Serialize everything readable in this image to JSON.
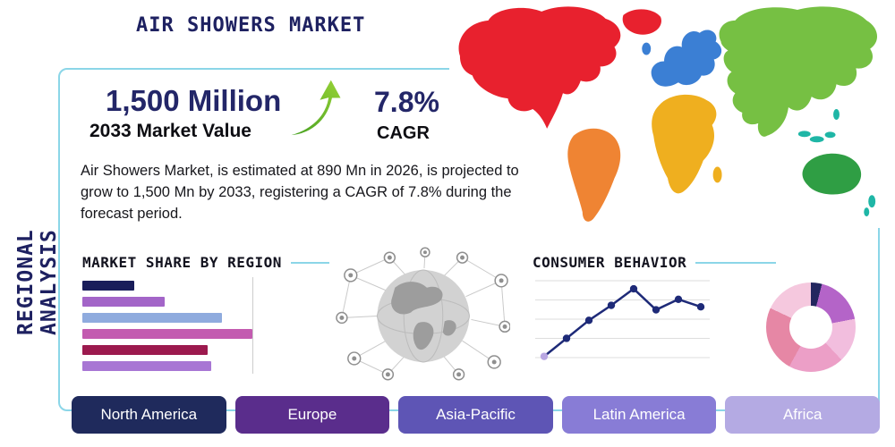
{
  "header": {
    "title": "AIR SHOWERS MARKET",
    "side_label": "REGIONAL ANALYSIS"
  },
  "highlights": {
    "market_value": "1,500 Million",
    "market_value_caption": "2033 Market Value",
    "cagr_value": "7.8%",
    "cagr_caption": "CAGR"
  },
  "description": "Air Showers Market, is estimated at 890 Mn in 2026, is projected to grow to 1,500 Mn by 2033, registering a CAGR of 7.8% during the forecast period.",
  "sections": {
    "market_share_title": "MARKET SHARE BY REGION",
    "consumer_behavior_title": "CONSUMER BEHAVIOR"
  },
  "icons": {
    "growth_arrow": "growth-arrow-icon",
    "globe_network": "globe-network-graphic",
    "world_map": "world-map-graphic"
  },
  "colors": {
    "navy": "#1e2161",
    "teal_border": "#8bd6e8"
  },
  "map_regions": [
    {
      "name": "north-america",
      "color": "#e8212e"
    },
    {
      "name": "greenland",
      "color": "#e8212e"
    },
    {
      "name": "south-america",
      "color": "#ef8433"
    },
    {
      "name": "europe",
      "color": "#3b7fd4"
    },
    {
      "name": "africa",
      "color": "#efaf1f"
    },
    {
      "name": "madagascar",
      "color": "#efaf1f"
    },
    {
      "name": "asia",
      "color": "#76c043"
    },
    {
      "name": "australia",
      "color": "#2f9e44"
    },
    {
      "name": "islands",
      "color": "#1fb6a6"
    }
  ],
  "region_buttons": [
    {
      "label": "North America",
      "color": "#1f2a5c"
    },
    {
      "label": "Europe",
      "color": "#5a2d8c"
    },
    {
      "label": "Asia-Pacific",
      "color": "#5e55b5"
    },
    {
      "label": "Latin America",
      "color": "#887cd6"
    },
    {
      "label": "Africa",
      "color": "#b4aae3"
    }
  ],
  "chart_data": [
    {
      "type": "bar",
      "title": "MARKET SHARE BY REGION",
      "orientation": "horizontal",
      "values": [
        29,
        46,
        78,
        95,
        70,
        72
      ],
      "value_unit": "relative width %, no axis labels shown",
      "colors": [
        "#191d5a",
        "#a365c8",
        "#8fabde",
        "#c35bb0",
        "#9c1a4e",
        "#a876d4"
      ],
      "gridline_at": 95
    },
    {
      "type": "line",
      "title": "CONSUMER BEHAVIOR",
      "values": [
        4,
        28,
        52,
        72,
        94,
        66,
        80,
        70
      ],
      "ylim": [
        0,
        100
      ],
      "grid": "horizontal",
      "line_color": "#1e2a78",
      "marker_color": "#1e2a78",
      "first_marker_color": "#b9a7e2"
    },
    {
      "type": "pie",
      "donut": true,
      "slices": [
        {
          "value": 4,
          "color": "#23265f"
        },
        {
          "value": 18,
          "color": "#b464c8"
        },
        {
          "value": 16,
          "color": "#f2bede"
        },
        {
          "value": 20,
          "color": "#ec9fc7"
        },
        {
          "value": 24,
          "color": "#e687a5"
        },
        {
          "value": 18,
          "color": "#f5c8de"
        }
      ]
    }
  ]
}
